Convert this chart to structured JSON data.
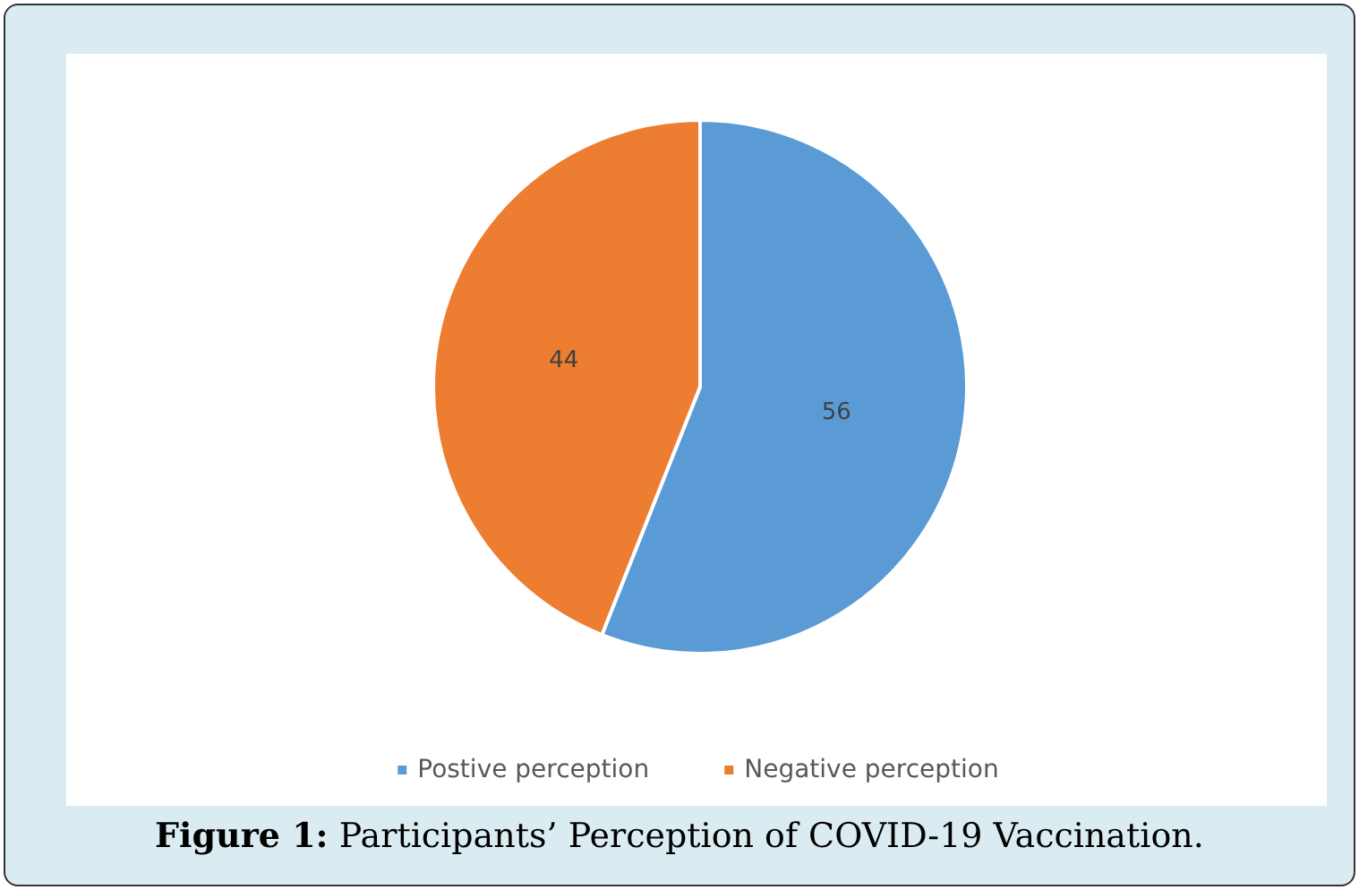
{
  "chart_data": {
    "type": "pie",
    "title": "Figure 1: Participants’ Perception of COVID-19 Vaccination.",
    "categories": [
      "Postive perception",
      "Negative perception"
    ],
    "values": [
      56,
      44
    ],
    "colors": [
      "#5b9bd5",
      "#ed7d31"
    ],
    "data_labels": true,
    "legend": "bottom"
  }
}
